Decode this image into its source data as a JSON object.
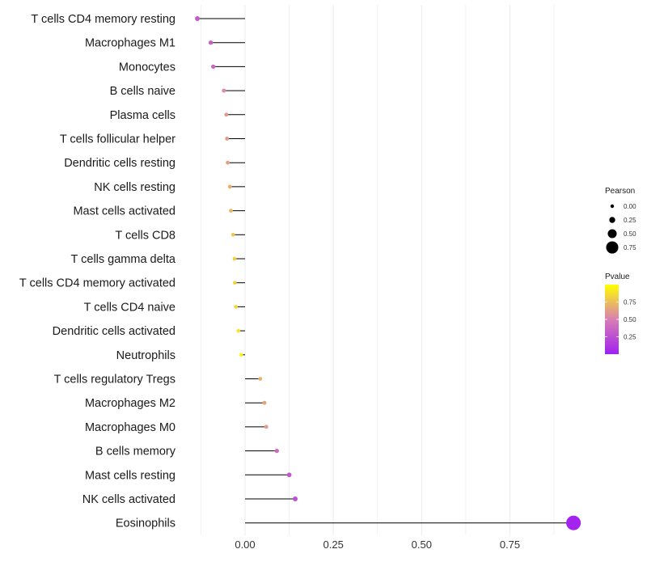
{
  "chart_data": {
    "type": "lollipop",
    "title": "",
    "xlabel": "",
    "ylabel": "",
    "xlim": [
      -0.135,
      0.955
    ],
    "x_ticks": [
      0.0,
      0.25,
      0.5,
      0.75
    ],
    "x_tick_labels": [
      "0.00",
      "0.25",
      "0.50",
      "0.75"
    ],
    "grid": true,
    "categories": [
      "T cells CD4 memory resting",
      "Macrophages M1",
      "Monocytes",
      "B cells naive",
      "Plasma cells",
      "T cells follicular helper",
      "Dendritic cells resting",
      "NK cells resting",
      "Mast cells activated",
      "T cells CD8",
      "T cells gamma delta",
      "T cells CD4 memory activated",
      "T cells CD4 naive",
      "Dendritic cells activated",
      "Neutrophils",
      "T cells regulatory  Tregs ",
      "Macrophages M2",
      "Macrophages M0",
      "B cells memory",
      "Mast cells resting",
      "NK cells activated",
      "Eosinophils"
    ],
    "pearson": [
      -0.135,
      -0.097,
      -0.09,
      -0.06,
      -0.053,
      -0.051,
      -0.049,
      -0.043,
      -0.04,
      -0.034,
      -0.03,
      -0.029,
      -0.026,
      -0.019,
      -0.011,
      0.043,
      0.055,
      0.06,
      0.09,
      0.125,
      0.142,
      0.93
    ],
    "pvalue": [
      0.3,
      0.35,
      0.38,
      0.55,
      0.6,
      0.62,
      0.63,
      0.7,
      0.72,
      0.78,
      0.82,
      0.83,
      0.85,
      0.9,
      0.95,
      0.7,
      0.65,
      0.62,
      0.4,
      0.3,
      0.25,
      0.02
    ],
    "legend_size": {
      "title": "Pearson",
      "values": [
        0.0,
        0.25,
        0.5,
        0.75
      ],
      "labels": [
        "0.00",
        "0.25",
        "0.50",
        "0.75"
      ],
      "placement": "right"
    },
    "legend_color": {
      "title": "Pvalue",
      "range": [
        0.0,
        1.0
      ],
      "ticks": [
        0.25,
        0.5,
        0.75
      ],
      "tick_labels": [
        "0.25",
        "0.50",
        "0.75"
      ],
      "low_color": "#a020f0",
      "mid_color": "#d87fb3",
      "high_color": "#ffff00",
      "placement": "right"
    },
    "stem_color": "#000000",
    "grid_color": "#ebebeb"
  }
}
